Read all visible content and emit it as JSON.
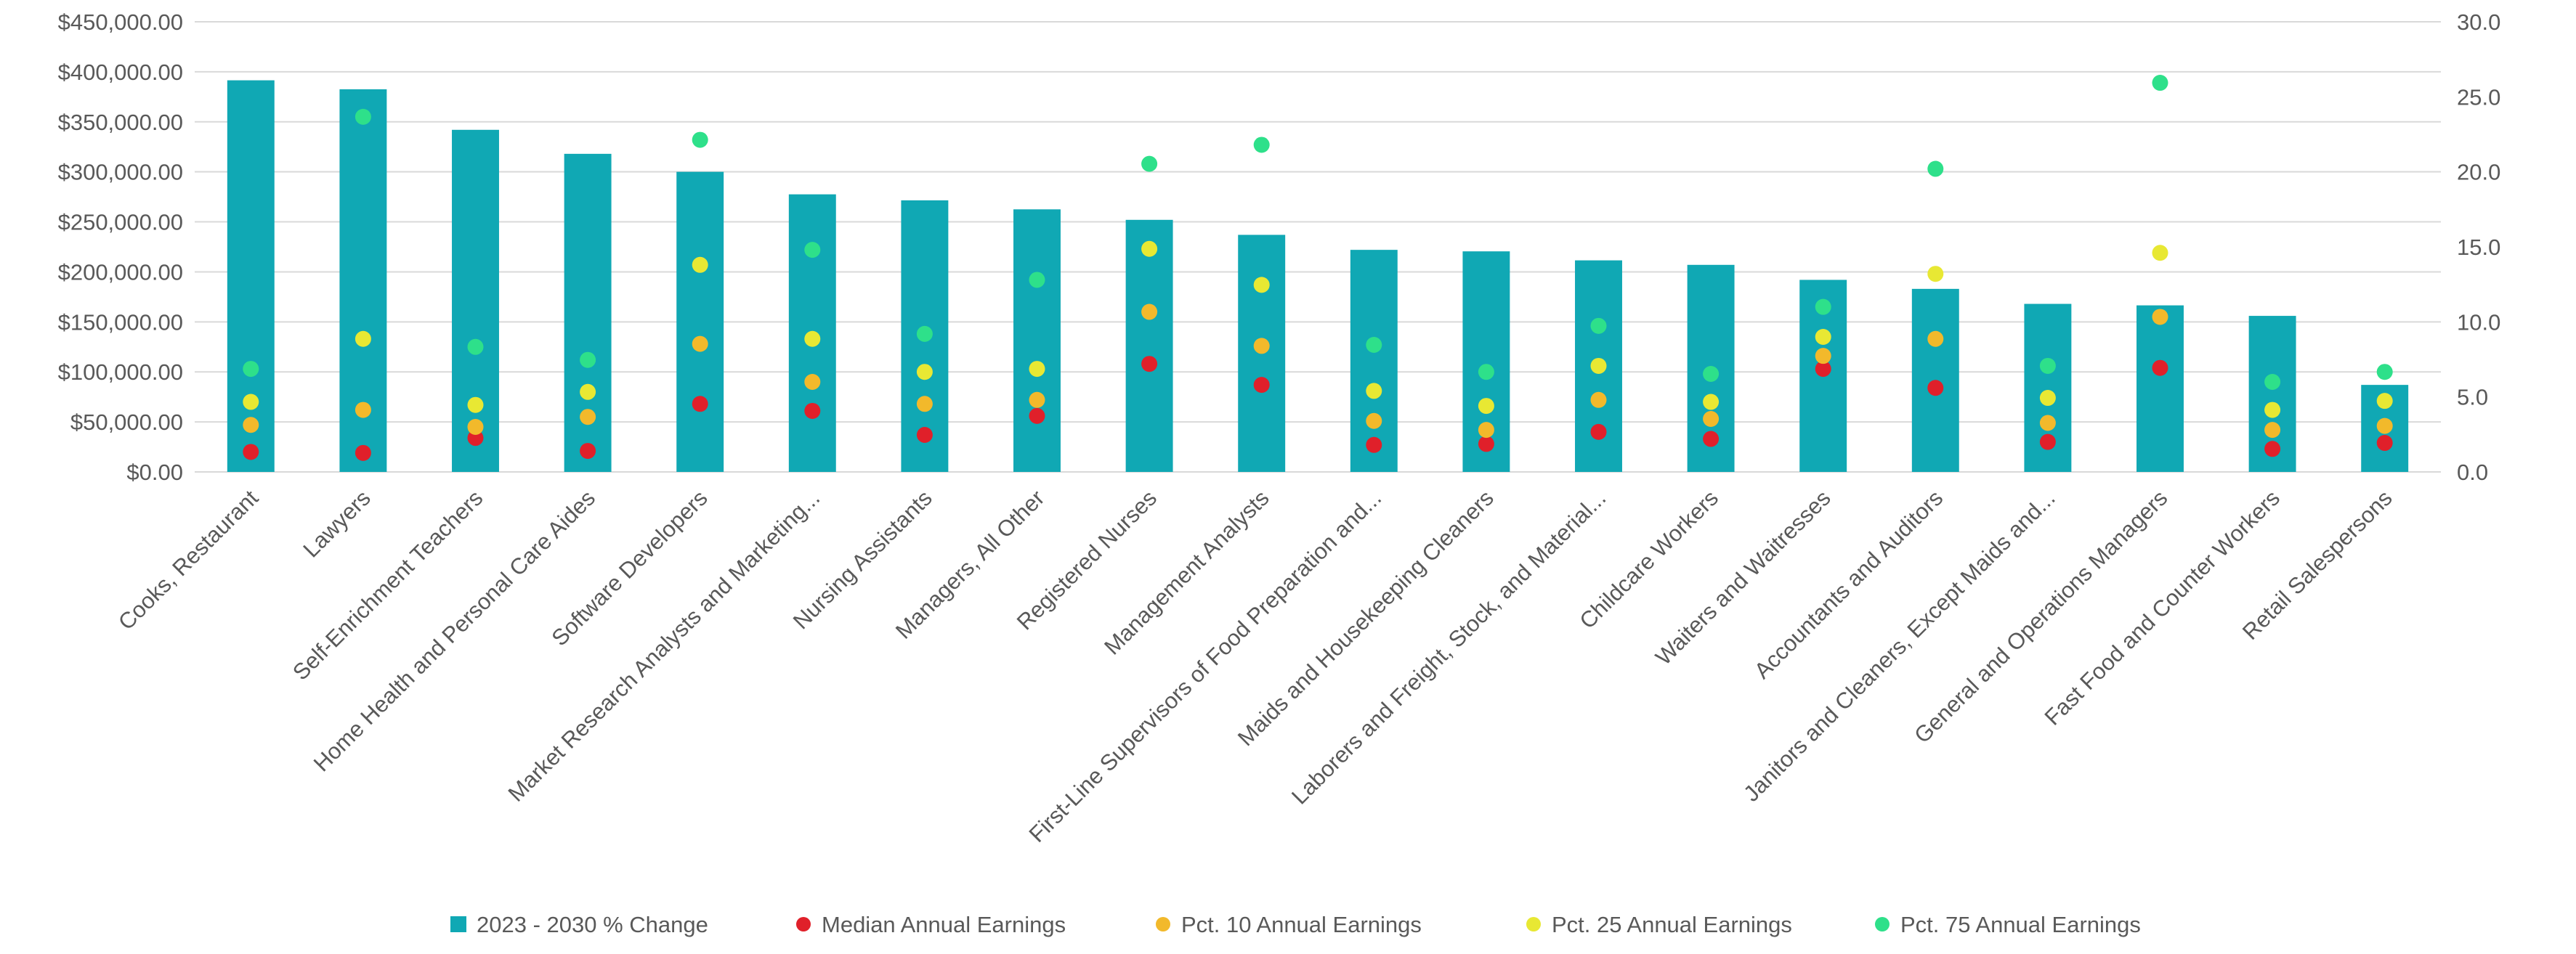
{
  "chart_data": {
    "type": "bar",
    "categories": [
      "Cooks, Restaurant",
      "Lawyers",
      "Self-Enrichment Teachers",
      "Home Health and Personal Care Aides",
      "Software Developers",
      "Market Research Analysts and Marketing...",
      "Nursing Assistants",
      "Managers, All Other",
      "Registered Nurses",
      "Management Analysts",
      "First-Line Supervisors of Food Preparation and...",
      "Maids and Housekeeping Cleaners",
      "Laborers and Freight, Stock, and Material...",
      "Childcare Workers",
      "Waiters and Waitresses",
      "Accountants and Auditors",
      "Janitors and Cleaners, Except Maids and...",
      "General and Operations Managers",
      "Fast Food and Counter Workers",
      "Retail Salespersons"
    ],
    "y_left": {
      "ticks": [
        "$0.00",
        "$50,000.00",
        "$100,000.00",
        "$150,000.00",
        "$200,000.00",
        "$250,000.00",
        "$300,000.00",
        "$350,000.00",
        "$400,000.00",
        "$450,000.00"
      ],
      "ylim": [
        0,
        450000
      ]
    },
    "y_right": {
      "ticks": [
        "0.0",
        "5.0",
        "10.0",
        "15.0",
        "20.0",
        "25.0",
        "30.0"
      ],
      "ylim": [
        0,
        30
      ]
    },
    "series": [
      {
        "name": "2023 - 2030 % Change",
        "kind": "bar",
        "axis": "right",
        "color": "#10A8B4",
        "values": [
          26.1,
          25.5,
          22.8,
          21.2,
          20.0,
          18.5,
          18.1,
          17.5,
          16.8,
          15.8,
          14.8,
          14.7,
          14.1,
          13.8,
          12.8,
          12.2,
          11.2,
          11.1,
          10.4,
          5.8
        ]
      },
      {
        "name": "Median Annual Earnings",
        "kind": "marker",
        "axis": "left",
        "color": "#E0202A",
        "values": [
          20000,
          19000,
          34000,
          21000,
          68000,
          61000,
          37000,
          56000,
          108000,
          87000,
          27000,
          28000,
          40000,
          33000,
          103000,
          84000,
          30000,
          104000,
          23000,
          29000
        ]
      },
      {
        "name": "Pct. 10 Annual Earnings",
        "kind": "marker",
        "axis": "left",
        "color": "#F2B92B",
        "values": [
          47000,
          62000,
          45000,
          55000,
          128000,
          90000,
          68000,
          72000,
          160000,
          126000,
          51000,
          42000,
          72000,
          53000,
          116000,
          133000,
          49000,
          155000,
          42000,
          46000
        ]
      },
      {
        "name": "Pct. 25 Annual Earnings",
        "kind": "marker",
        "axis": "left",
        "color": "#E8E833",
        "values": [
          70000,
          133000,
          67000,
          80000,
          207000,
          133000,
          100000,
          103000,
          223000,
          187000,
          81000,
          66000,
          106000,
          70000,
          135000,
          198000,
          74000,
          219000,
          62000,
          71000
        ]
      },
      {
        "name": "Pct. 75 Annual Earnings",
        "kind": "marker",
        "axis": "left",
        "color": "#2EE08A",
        "values": [
          103000,
          355000,
          125000,
          112000,
          332000,
          222000,
          138000,
          192000,
          308000,
          327000,
          127000,
          100000,
          146000,
          98000,
          165000,
          303000,
          106000,
          389000,
          90000,
          100000
        ]
      }
    ],
    "legend_position": "bottom",
    "grid": true
  }
}
